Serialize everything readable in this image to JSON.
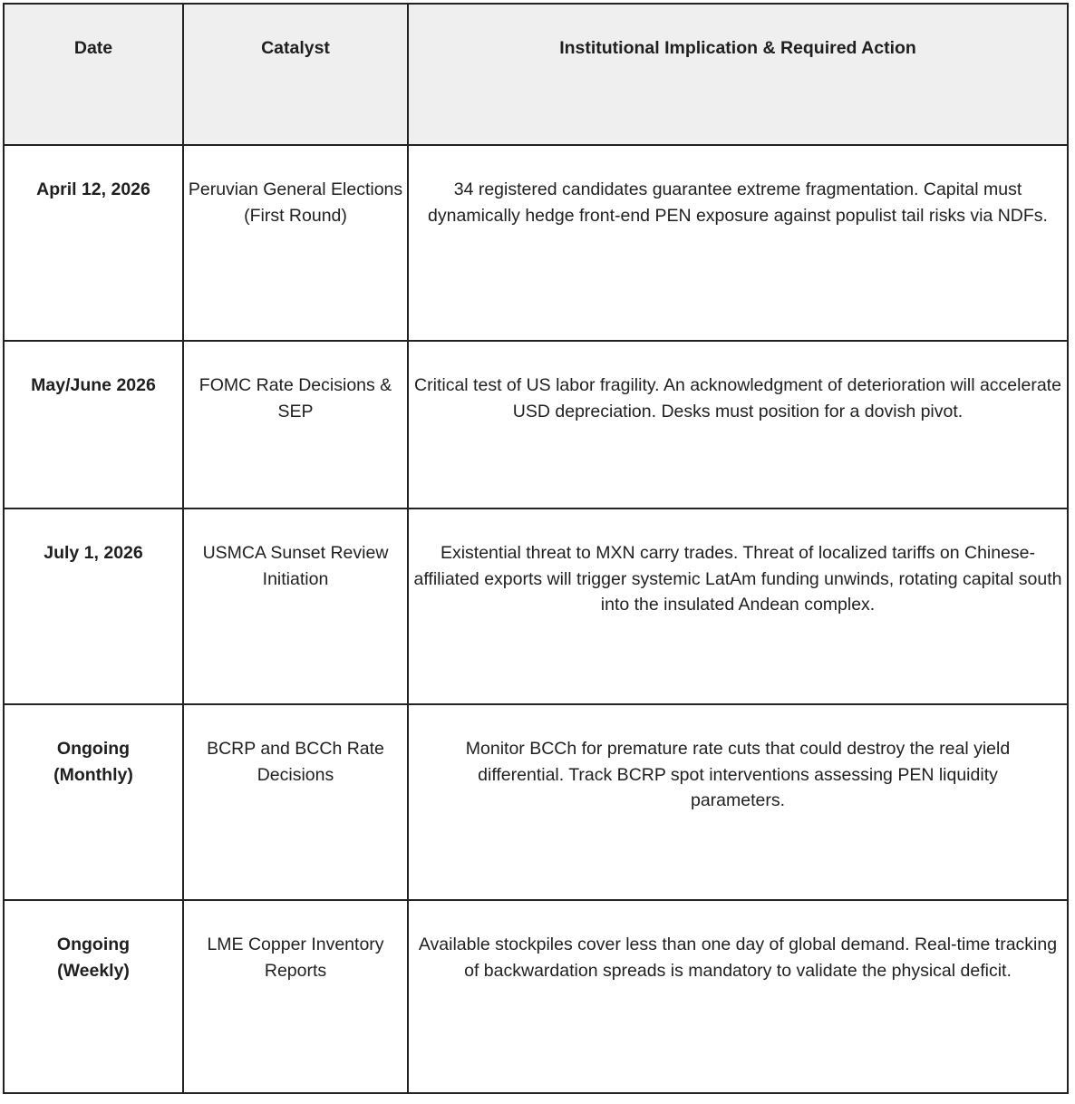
{
  "table": {
    "headers": [
      "Date",
      "Catalyst",
      "Institutional Implication & Required Action"
    ],
    "rows": [
      {
        "date": "April 12, 2026",
        "catalyst": "Peruvian General Elections (First Round)",
        "action": "34 registered candidates guarantee extreme fragmentation. Capital must dynamically hedge front-end PEN exposure against populist tail risks via NDFs."
      },
      {
        "date": "May/June 2026",
        "catalyst": "FOMC Rate Decisions & SEP",
        "action": "Critical test of US labor fragility. An acknowledgment of deterioration will accelerate USD depreciation. Desks must position for a dovish pivot."
      },
      {
        "date": "July 1, 2026",
        "catalyst": "USMCA Sunset Review Initiation",
        "action": "Existential threat to MXN carry trades. Threat of localized tariffs on Chinese-affiliated exports will trigger systemic LatAm funding unwinds, rotating capital south into the insulated Andean complex."
      },
      {
        "date": "Ongoing (Monthly)",
        "catalyst": "BCRP and BCCh Rate Decisions",
        "action": "Monitor BCCh for premature rate cuts that could destroy the real yield differential. Track BCRP spot interventions assessing PEN liquidity parameters."
      },
      {
        "date": "Ongoing (Weekly)",
        "catalyst": "LME Copper Inventory Reports",
        "action": "Available stockpiles cover less than one day of global demand. Real-time tracking of backwardation spreads is mandatory to validate the physical deficit."
      }
    ]
  }
}
